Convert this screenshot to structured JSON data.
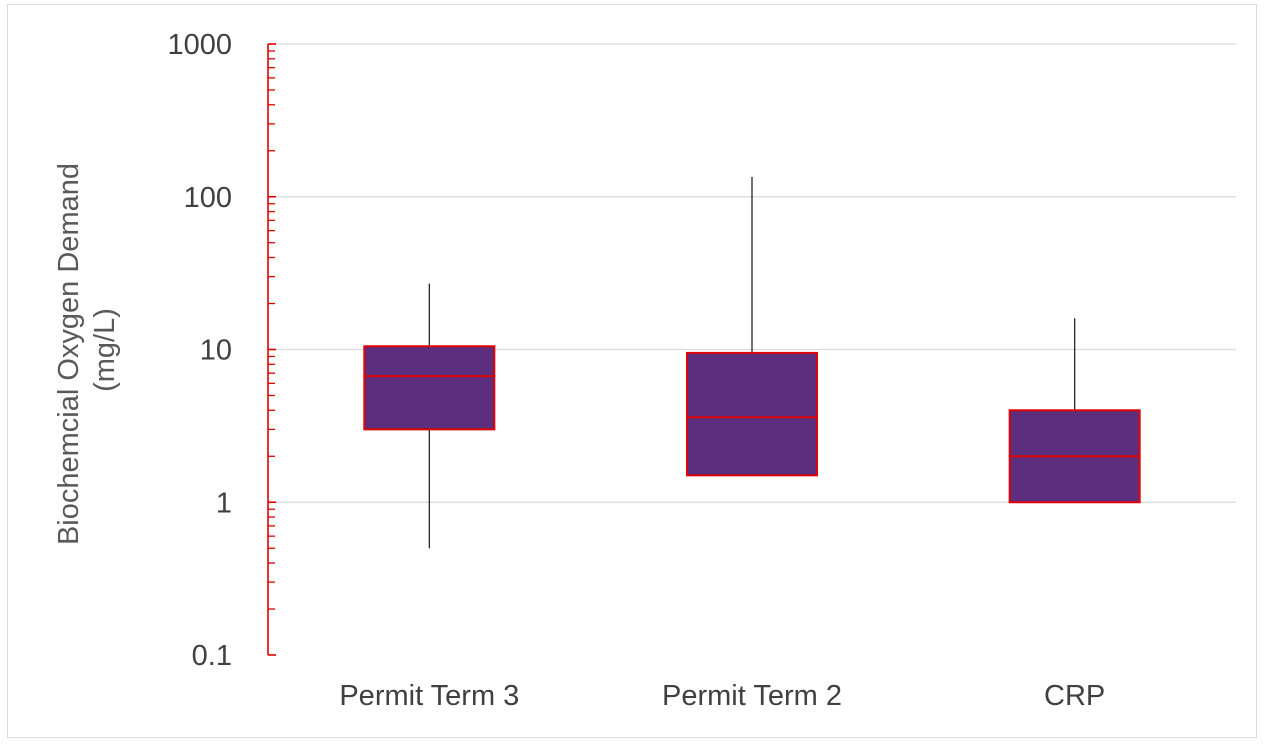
{
  "chart_data": {
    "type": "boxplot",
    "title": "",
    "xlabel": "",
    "ylabel_lines": [
      "Biochemcial Oxygen Demand",
      "(mg/L)"
    ],
    "y_scale": "log",
    "ylim": [
      0.1,
      1000
    ],
    "y_ticks": [
      0.1,
      1,
      10,
      100,
      1000
    ],
    "y_tick_labels": [
      "0.1",
      "1",
      "10",
      "100",
      "1000"
    ],
    "grid": true,
    "legend": "none",
    "categories": [
      "Permit Term 3",
      "Permit Term 2",
      "CRP"
    ],
    "boxes": [
      {
        "category": "Permit Term 3",
        "min": 0.5,
        "q1": 3.0,
        "median": 6.7,
        "q3": 10.5,
        "max": 27
      },
      {
        "category": "Permit Term 2",
        "min": 1.5,
        "q1": 1.5,
        "median": 3.6,
        "q3": 9.5,
        "max": 135
      },
      {
        "category": "CRP",
        "min": 1.0,
        "q1": 1.0,
        "median": 2.0,
        "q3": 4.0,
        "max": 16
      }
    ],
    "colors": {
      "box_fill": "#5b2e7e",
      "box_outline": "#e00000",
      "median_line": "#e00000",
      "whisker": "#262626",
      "y_axis": "#e00000",
      "grid": "#d9d9d9"
    }
  }
}
